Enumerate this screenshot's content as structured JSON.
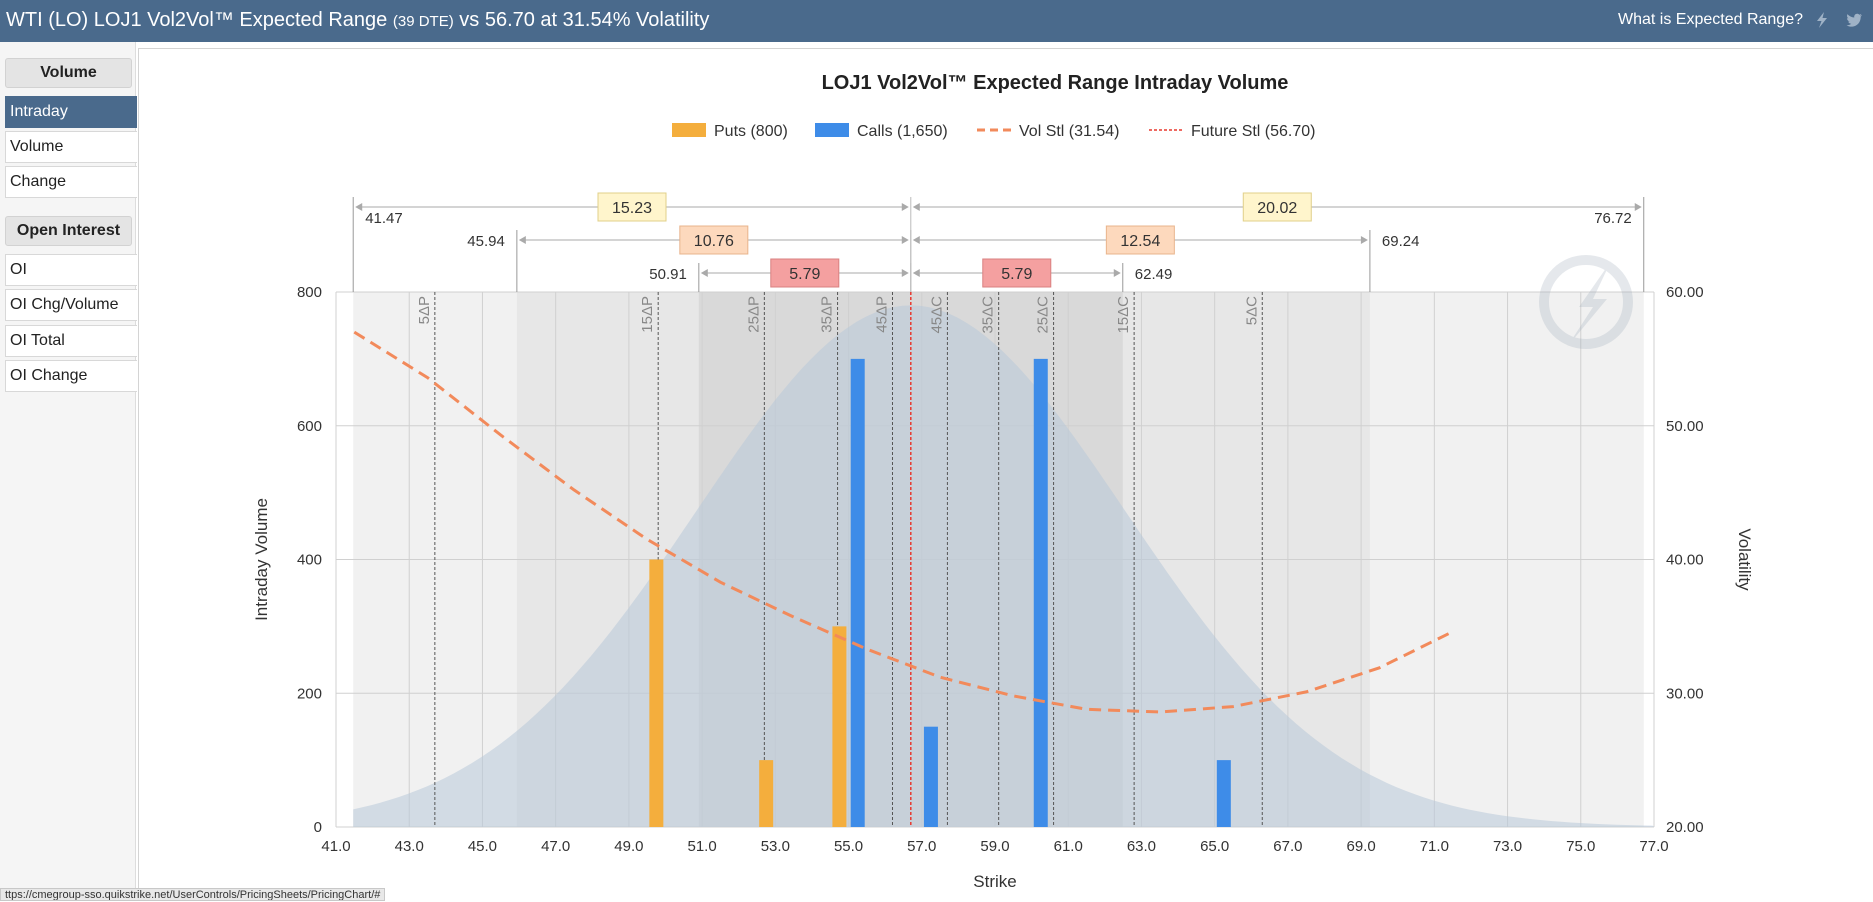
{
  "header": {
    "title_main": "WTI (LO) LOJ1 Vol2Vol™ Expected Range",
    "title_dte": "(39 DTE)",
    "title_rest": "vs 56.70 at 31.54% Volatility",
    "help_link": "What is Expected Range?",
    "icons": [
      "lightning-icon",
      "twitter-bird-icon"
    ]
  },
  "sidebar": {
    "volume_heading": "Volume",
    "volume_items": [
      "Intraday",
      "Volume",
      "Change"
    ],
    "active_item": "Intraday",
    "oi_heading": "Open Interest",
    "oi_items": [
      "OI",
      "OI Chg/Volume",
      "OI Total",
      "OI Change"
    ]
  },
  "status_url": "ttps://cmegroup-sso.quikstrike.net/UserControls/PricingSheets/PricingChart/#",
  "colors": {
    "header_bg": "#4a6a8c",
    "puts": "#f4ae3d",
    "calls": "#3e8ce8",
    "vol_curve": "#f28a5b",
    "future_line": "#e8382f",
    "range_1sd": "#fff5cc",
    "range_2sd": "#fdd9bd",
    "range_3sd": "#f4a0a0"
  },
  "chart_data": {
    "type": "bar",
    "title": "LOJ1 Vol2Vol™ Expected Range Intraday Volume",
    "xlabel": "Strike",
    "ylabel": "Intraday Volume",
    "y2label": "Volatility",
    "xlim": [
      41.0,
      77.0
    ],
    "ylim": [
      0,
      800
    ],
    "y2lim": [
      20.0,
      60.0
    ],
    "x_ticks": [
      "41.0",
      "43.0",
      "45.0",
      "47.0",
      "49.0",
      "51.0",
      "53.0",
      "55.0",
      "57.0",
      "59.0",
      "61.0",
      "63.0",
      "65.0",
      "67.0",
      "69.0",
      "71.0",
      "73.0",
      "75.0",
      "77.0"
    ],
    "y_ticks": [
      "0",
      "200",
      "400",
      "600",
      "800"
    ],
    "y2_ticks": [
      "20.00",
      "30.00",
      "40.00",
      "50.00",
      "60.00"
    ],
    "legend": [
      {
        "label": "Puts (800)",
        "kind": "bar",
        "color": "#f4ae3d"
      },
      {
        "label": "Calls (1,650)",
        "kind": "bar",
        "color": "#3e8ce8"
      },
      {
        "label": "Vol Stl (31.54)",
        "kind": "dash",
        "color": "#f28a5b"
      },
      {
        "label": "Future Stl (56.70)",
        "kind": "dot",
        "color": "#e8382f"
      }
    ],
    "series": [
      {
        "name": "Puts",
        "strikes": [
          49.75,
          52.75,
          54.75
        ],
        "values": [
          400,
          100,
          300
        ]
      },
      {
        "name": "Calls",
        "strikes": [
          55.25,
          57.25,
          60.25,
          65.25
        ],
        "values": [
          700,
          150,
          700,
          100
        ]
      }
    ],
    "vol_curve": {
      "name": "Vol Stl",
      "x": [
        41.5,
        43.5,
        45.5,
        47.5,
        49.5,
        51.5,
        53.5,
        55.5,
        57.5,
        59.5,
        61.5,
        63.5,
        65.5,
        67.5,
        69.5,
        71.5
      ],
      "y": [
        57.0,
        53.6,
        49.3,
        45.2,
        41.5,
        38.3,
        35.7,
        33.3,
        31.2,
        29.8,
        28.8,
        28.6,
        29.0,
        30.1,
        31.9,
        34.6
      ]
    },
    "future_settle": 56.7,
    "vol_settle": 31.54,
    "delta_lines": [
      {
        "label": "5ΔP",
        "x": 43.7
      },
      {
        "label": "15ΔP",
        "x": 49.8
      },
      {
        "label": "25ΔP",
        "x": 52.7
      },
      {
        "label": "35ΔP",
        "x": 54.7
      },
      {
        "label": "45ΔP",
        "x": 56.2
      },
      {
        "label": "45ΔC",
        "x": 57.7
      },
      {
        "label": "35ΔC",
        "x": 59.1
      },
      {
        "label": "25ΔC",
        "x": 60.6
      },
      {
        "label": "15ΔC",
        "x": 62.8
      },
      {
        "label": "5ΔC",
        "x": 66.3
      }
    ],
    "expected_ranges": [
      {
        "level": 3,
        "low": 41.47,
        "high": 76.72,
        "low_label": "41.47",
        "high_label": "76.72",
        "down_width": "15.23",
        "up_width": "20.02"
      },
      {
        "level": 2,
        "low": 45.94,
        "high": 69.24,
        "low_label": "45.94",
        "high_label": "69.24",
        "down_width": "10.76",
        "up_width": "12.54"
      },
      {
        "level": 1,
        "low": 50.91,
        "high": 62.49,
        "low_label": "50.91",
        "high_label": "62.49",
        "down_width": "5.79",
        "up_width": "5.79"
      }
    ],
    "distribution": {
      "mean": 56.7,
      "sd": 5.85,
      "peak_volume": 780
    },
    "grid": true,
    "legend_position": "top-center"
  }
}
